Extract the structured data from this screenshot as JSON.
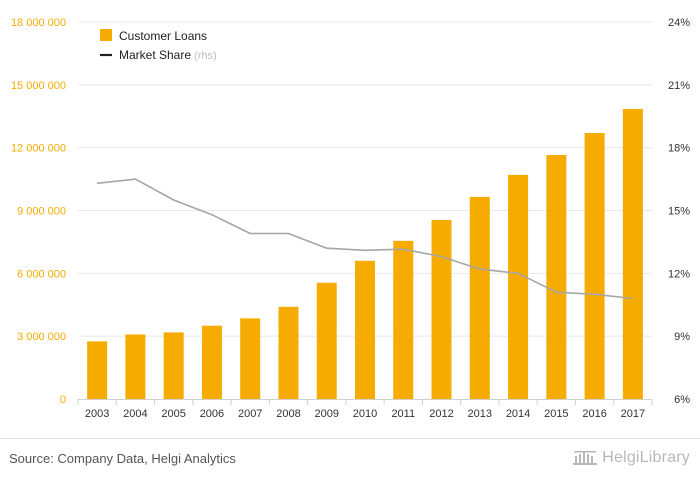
{
  "chart_data": {
    "type": "bar",
    "categories": [
      "2003",
      "2004",
      "2005",
      "2006",
      "2007",
      "2008",
      "2009",
      "2010",
      "2011",
      "2012",
      "2013",
      "2014",
      "2015",
      "2016",
      "2017"
    ],
    "series": [
      {
        "name": "Customer Loans",
        "type": "bar",
        "axis": "left",
        "color": "#f5ab00",
        "values": [
          2750000,
          3080000,
          3180000,
          3500000,
          3850000,
          4400000,
          5550000,
          6600000,
          7550000,
          8550000,
          9650000,
          10700000,
          11650000,
          12700000,
          13850000
        ]
      },
      {
        "name": "Market Share",
        "legend_suffix": " (rhs)",
        "type": "line",
        "axis": "right",
        "color": "#a6a6a6",
        "legend_color": "#222222",
        "values": [
          16.3,
          16.5,
          15.5,
          14.8,
          13.9,
          13.9,
          13.2,
          13.1,
          13.15,
          12.8,
          12.2,
          12.0,
          11.1,
          11.0,
          10.8
        ]
      }
    ],
    "yleft": {
      "lim": [
        0,
        18000000
      ],
      "ticks": [
        0,
        3000000,
        6000000,
        9000000,
        12000000,
        15000000,
        18000000
      ],
      "tick_labels": [
        "0",
        "3 000 000",
        "6 000 000",
        "9 000 000",
        "12 000 000",
        "15 000 000",
        "18 000 000"
      ],
      "color": "#f5ab00"
    },
    "yright": {
      "lim": [
        6,
        24
      ],
      "ticks": [
        6,
        9,
        12,
        15,
        18,
        21,
        24
      ],
      "tick_labels": [
        "6%",
        "9%",
        "12%",
        "15%",
        "18%",
        "21%",
        "24%"
      ],
      "color": "#333333"
    },
    "grid": true,
    "legend_position": "top-left"
  },
  "footer": {
    "source": "Source: Company Data, Helgi Analytics",
    "brand": "HelgiLibrary"
  }
}
